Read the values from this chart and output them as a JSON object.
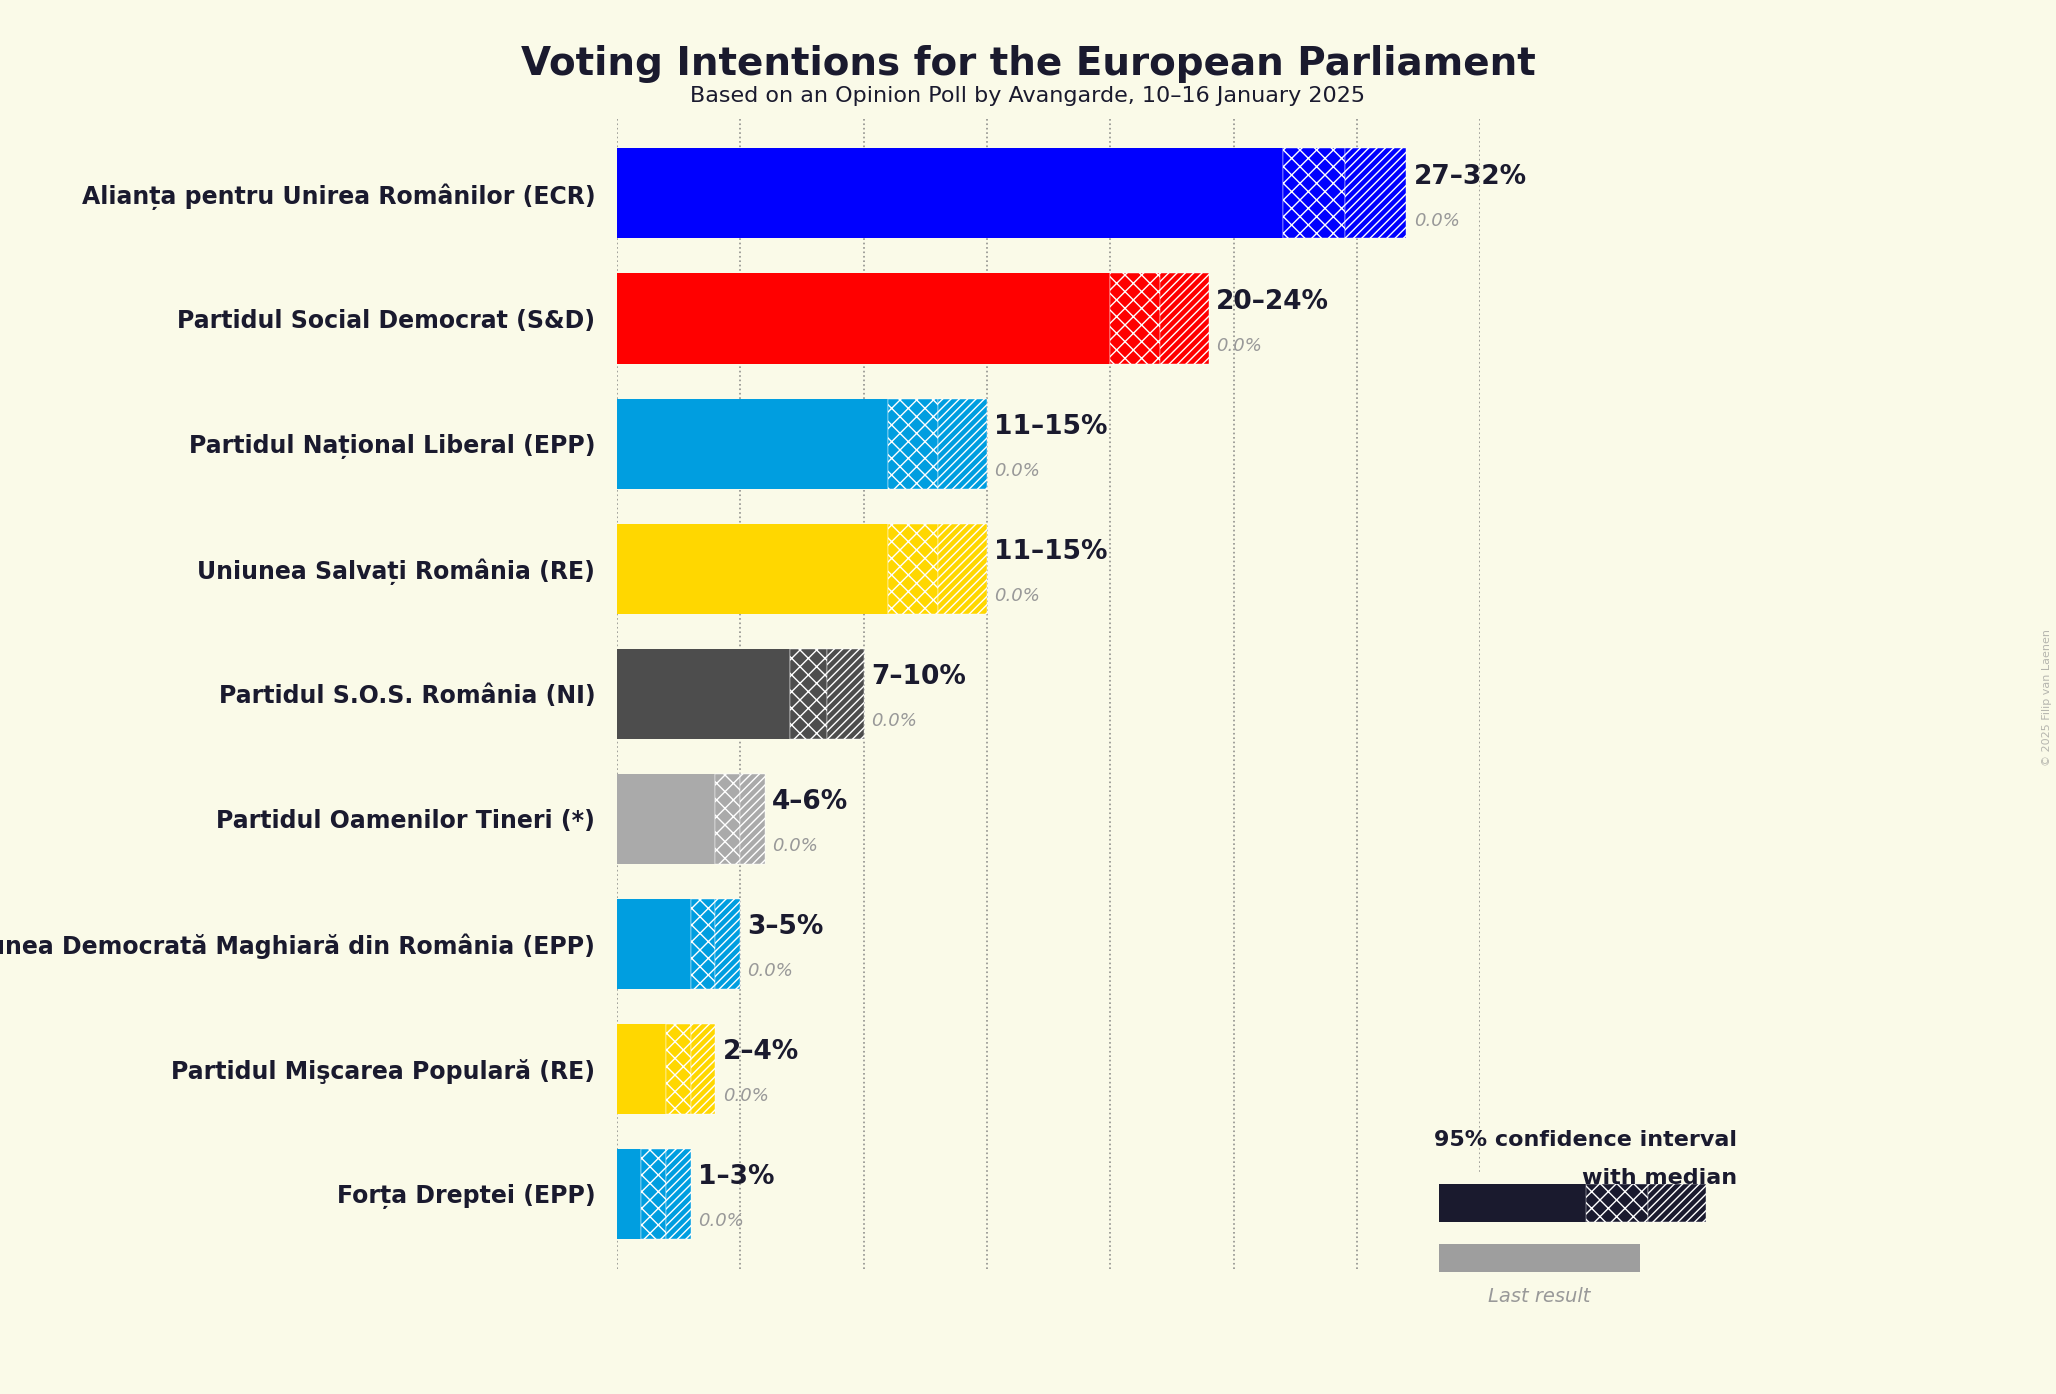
{
  "title": "Voting Intentions for the European Parliament",
  "subtitle": "Based on an Opinion Poll by Avangarde, 10–16 January 2025",
  "background_color": "#FAFAE8",
  "parties": [
    {
      "name": "Alianța pentru Unirea Românilor (ECR)",
      "low": 27,
      "high": 32,
      "median": 27,
      "last": 0.0,
      "color": "#0000FF",
      "label": "27–32%"
    },
    {
      "name": "Partidul Social Democrat (S&D)",
      "low": 20,
      "high": 24,
      "median": 20,
      "last": 0.0,
      "color": "#FF0000",
      "label": "20–24%"
    },
    {
      "name": "Partidul Național Liberal (EPP)",
      "low": 11,
      "high": 15,
      "median": 11,
      "last": 0.0,
      "color": "#009EE0",
      "label": "11–15%"
    },
    {
      "name": "Uniunea Salvați România (RE)",
      "low": 11,
      "high": 15,
      "median": 11,
      "last": 0.0,
      "color": "#FFD700",
      "label": "11–15%"
    },
    {
      "name": "Partidul S.O.S. România (NI)",
      "low": 7,
      "high": 10,
      "median": 7,
      "last": 0.0,
      "color": "#4D4D4D",
      "label": "7–10%"
    },
    {
      "name": "Partidul Oamenilor Tineri (*)",
      "low": 4,
      "high": 6,
      "median": 4,
      "last": 0.0,
      "color": "#AAAAAA",
      "label": "4–6%"
    },
    {
      "name": "Uniunea Democrată Maghiară din România (EPP)",
      "low": 3,
      "high": 5,
      "median": 3,
      "last": 0.0,
      "color": "#009EE0",
      "label": "3–5%"
    },
    {
      "name": "Partidul Mişcarea Populară (RE)",
      "low": 2,
      "high": 4,
      "median": 2,
      "last": 0.0,
      "color": "#FFD700",
      "label": "2–4%"
    },
    {
      "name": "Forța Dreptei (EPP)",
      "low": 1,
      "high": 3,
      "median": 1,
      "last": 0.0,
      "color": "#009EE0",
      "label": "1–3%"
    }
  ],
  "xlim": [
    0,
    35
  ],
  "grid_positions": [
    0,
    5,
    10,
    15,
    20,
    25,
    30,
    35
  ],
  "label_color_main": "#1a1a2e",
  "label_color_sub": "#999999",
  "last_result_color": "#9E9E9E",
  "watermark": "© 2025 Filip van Laenen",
  "legend_text1": "95% confidence interval",
  "legend_text2": "with median",
  "legend_last": "Last result"
}
